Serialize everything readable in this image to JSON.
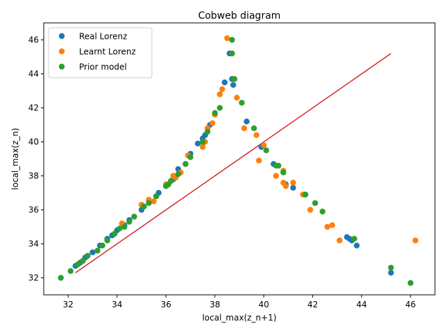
{
  "chart_data": {
    "type": "scatter",
    "title": "Cobweb diagram",
    "xlabel": "local_max(z_n+1)",
    "ylabel": "local_max(z_n)",
    "xlim": [
      31.0,
      47.0
    ],
    "ylim": [
      31.0,
      47.0
    ],
    "xticks": [
      32,
      34,
      36,
      38,
      40,
      42,
      44,
      46
    ],
    "yticks": [
      32,
      34,
      36,
      38,
      40,
      42,
      44,
      46
    ],
    "grid": false,
    "legend_position": "top-left",
    "identity_line": {
      "x": [
        32.3,
        45.2
      ],
      "y": [
        32.3,
        45.2
      ],
      "color": "#d62728"
    },
    "series": [
      {
        "name": "Real Lorenz",
        "color": "#1f77b4",
        "points": [
          [
            32.3,
            32.7
          ],
          [
            32.5,
            32.9
          ],
          [
            32.7,
            33.2
          ],
          [
            33.0,
            33.5
          ],
          [
            33.3,
            33.9
          ],
          [
            33.6,
            34.3
          ],
          [
            33.8,
            34.5
          ],
          [
            34.0,
            34.8
          ],
          [
            34.3,
            35.1
          ],
          [
            34.5,
            35.4
          ],
          [
            34.7,
            35.6
          ],
          [
            35.0,
            36.0
          ],
          [
            35.3,
            36.5
          ],
          [
            35.6,
            36.8
          ],
          [
            35.7,
            37.0
          ],
          [
            36.0,
            37.4
          ],
          [
            36.3,
            37.8
          ],
          [
            36.5,
            38.4
          ],
          [
            36.8,
            38.7
          ],
          [
            37.0,
            39.3
          ],
          [
            37.3,
            39.9
          ],
          [
            37.5,
            40.2
          ],
          [
            37.6,
            40.4
          ],
          [
            37.8,
            41.0
          ],
          [
            38.4,
            43.5
          ],
          [
            38.6,
            45.2
          ],
          [
            38.7,
            43.7
          ],
          [
            38.75,
            43.35
          ],
          [
            39.3,
            41.2
          ],
          [
            39.9,
            39.7
          ],
          [
            40.4,
            38.7
          ],
          [
            40.9,
            37.5
          ],
          [
            41.2,
            37.3
          ],
          [
            41.7,
            36.9
          ],
          [
            43.4,
            34.4
          ],
          [
            43.5,
            34.3
          ],
          [
            43.6,
            34.2
          ],
          [
            43.8,
            33.9
          ],
          [
            45.2,
            32.3
          ]
        ]
      },
      {
        "name": "Learnt Lorenz",
        "color": "#ff7f0e",
        "points": [
          [
            34.2,
            35.2
          ],
          [
            35.0,
            36.3
          ],
          [
            35.3,
            36.6
          ],
          [
            35.5,
            36.5
          ],
          [
            36.0,
            37.5
          ],
          [
            36.3,
            38.0
          ],
          [
            36.4,
            37.9
          ],
          [
            36.6,
            38.2
          ],
          [
            36.9,
            39.2
          ],
          [
            37.5,
            39.7
          ],
          [
            37.6,
            40.0
          ],
          [
            37.7,
            40.8
          ],
          [
            37.9,
            41.1
          ],
          [
            38.0,
            41.6
          ],
          [
            38.2,
            42.8
          ],
          [
            38.3,
            43.1
          ],
          [
            38.5,
            46.1
          ],
          [
            38.7,
            45.2
          ],
          [
            38.9,
            42.6
          ],
          [
            39.2,
            40.8
          ],
          [
            39.7,
            40.4
          ],
          [
            39.8,
            38.9
          ],
          [
            40.0,
            39.8
          ],
          [
            40.5,
            38.0
          ],
          [
            40.8,
            38.3
          ],
          [
            40.8,
            37.6
          ],
          [
            40.9,
            37.4
          ],
          [
            41.2,
            37.6
          ],
          [
            41.6,
            36.9
          ],
          [
            41.9,
            36.0
          ],
          [
            42.6,
            35.0
          ],
          [
            42.8,
            35.1
          ],
          [
            43.1,
            34.2
          ],
          [
            46.2,
            34.2
          ]
        ]
      },
      {
        "name": "Prior model",
        "color": "#2ca02c",
        "points": [
          [
            31.7,
            32.0
          ],
          [
            32.1,
            32.4
          ],
          [
            32.4,
            32.8
          ],
          [
            32.6,
            33.0
          ],
          [
            32.8,
            33.3
          ],
          [
            33.2,
            33.6
          ],
          [
            33.4,
            33.9
          ],
          [
            33.6,
            34.2
          ],
          [
            33.9,
            34.6
          ],
          [
            34.1,
            34.9
          ],
          [
            34.3,
            35.0
          ],
          [
            34.5,
            35.3
          ],
          [
            34.7,
            35.6
          ],
          [
            35.1,
            36.2
          ],
          [
            35.3,
            36.4
          ],
          [
            35.6,
            36.8
          ],
          [
            36.0,
            37.4
          ],
          [
            36.1,
            37.5
          ],
          [
            36.2,
            37.7
          ],
          [
            36.5,
            38.1
          ],
          [
            36.8,
            38.7
          ],
          [
            37.0,
            39.1
          ],
          [
            37.5,
            40.0
          ],
          [
            37.7,
            40.6
          ],
          [
            38.0,
            41.7
          ],
          [
            38.2,
            42.0
          ],
          [
            38.7,
            45.2
          ],
          [
            38.7,
            46.0
          ],
          [
            38.8,
            43.7
          ],
          [
            39.1,
            42.3
          ],
          [
            39.6,
            40.8
          ],
          [
            40.1,
            39.5
          ],
          [
            40.5,
            38.6
          ],
          [
            40.6,
            38.6
          ],
          [
            40.8,
            38.2
          ],
          [
            41.7,
            36.9
          ],
          [
            42.1,
            36.4
          ],
          [
            42.4,
            35.9
          ],
          [
            43.7,
            34.3
          ],
          [
            45.2,
            32.6
          ],
          [
            46.0,
            31.7
          ]
        ]
      }
    ]
  }
}
